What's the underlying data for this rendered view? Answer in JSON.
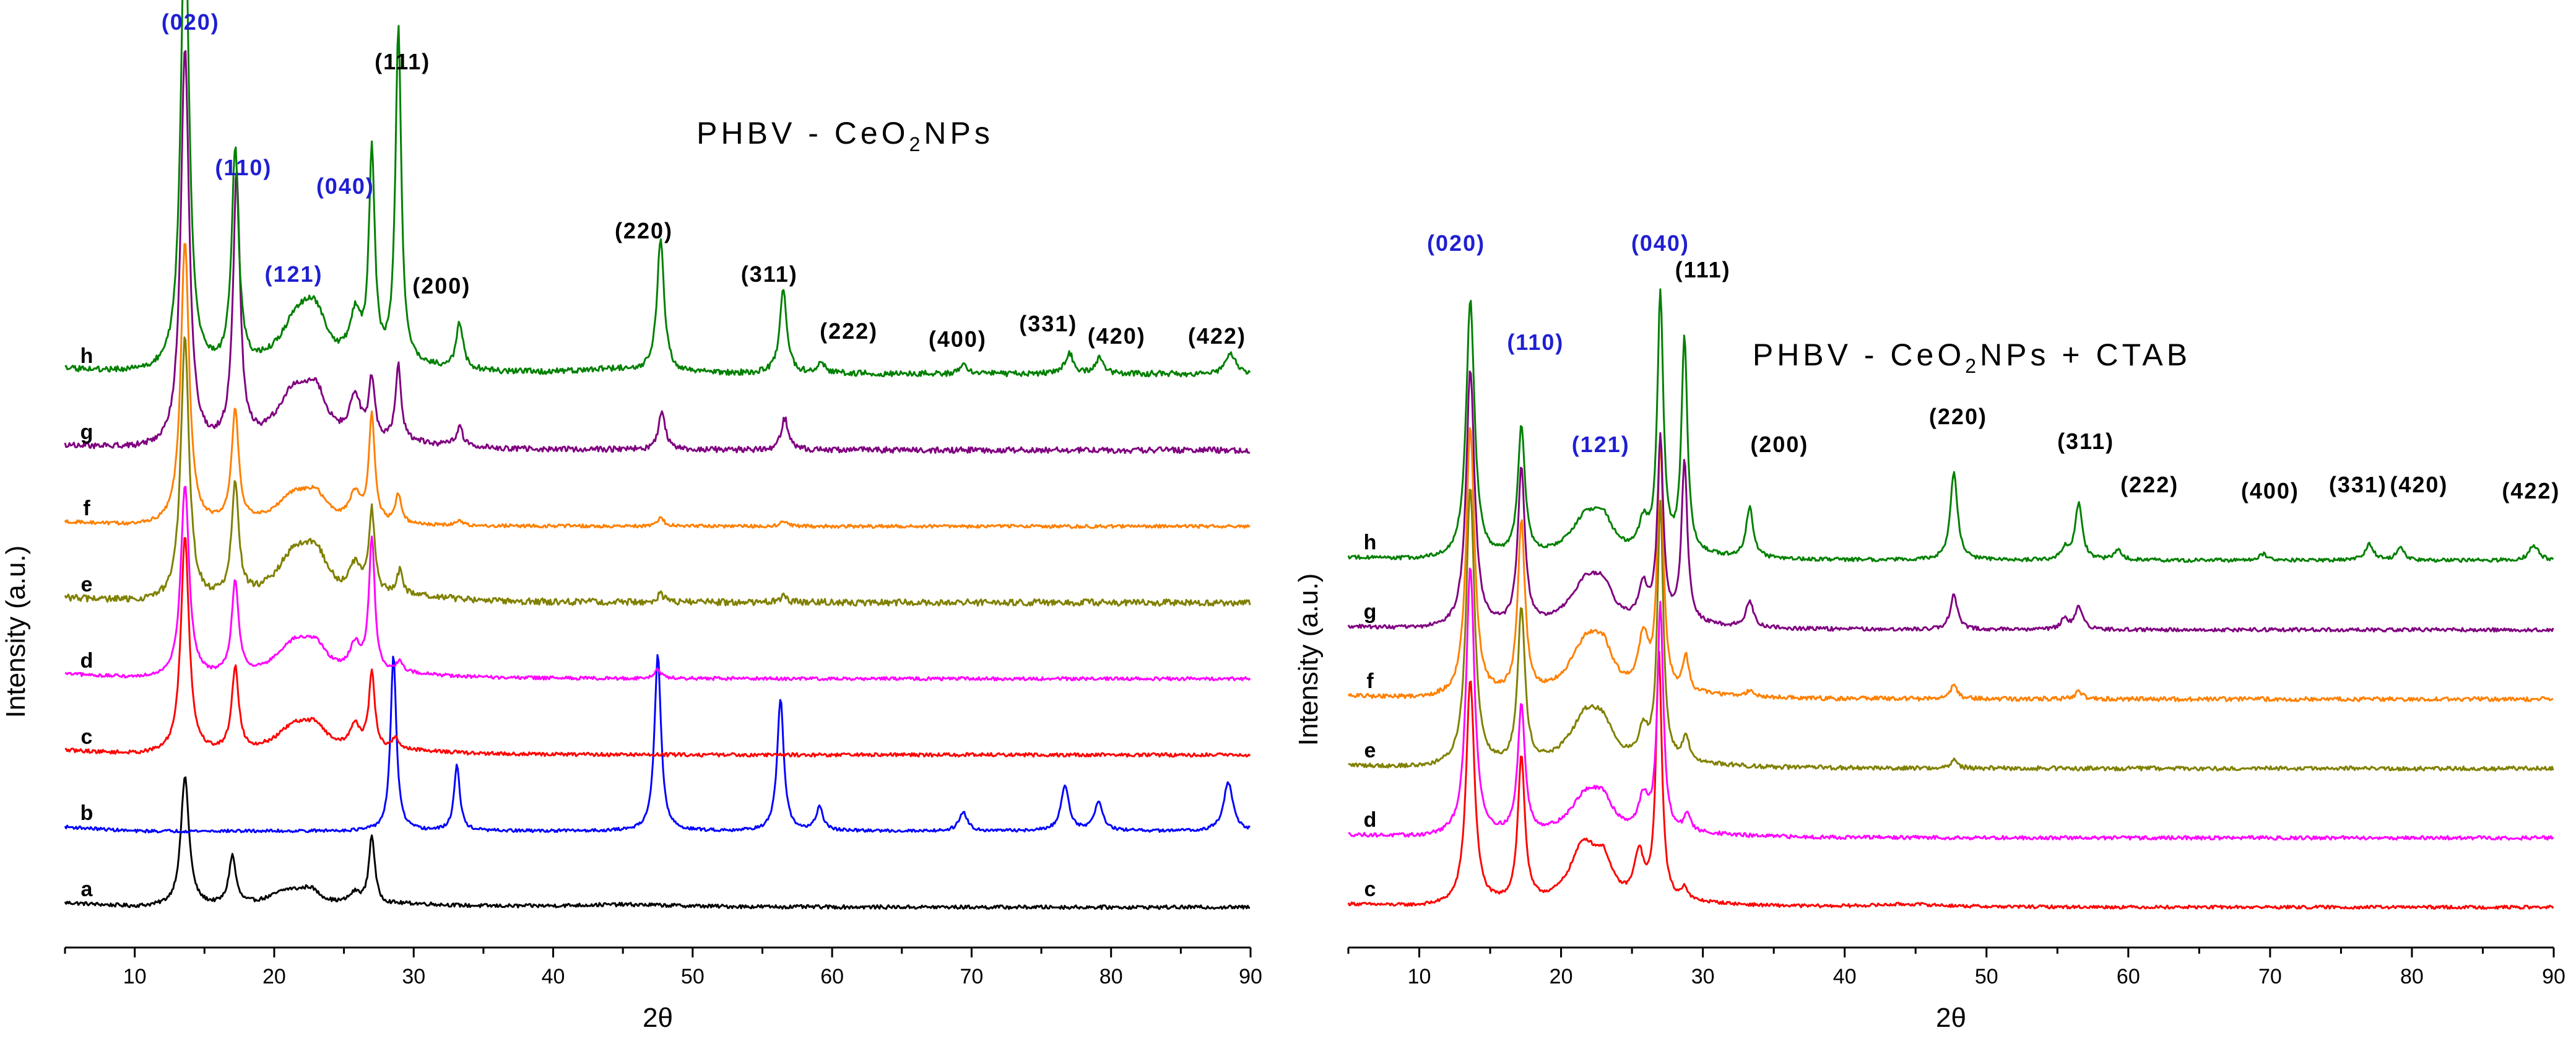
{
  "chart_data": [
    {
      "type": "line",
      "title": "PHBV - CeO2NPs",
      "title_parts": {
        "pre": "PHBV - CeO",
        "sub": "2",
        "post": "NPs"
      },
      "xlabel": "2θ",
      "ylabel": "Intensity (a.u.)",
      "xlim": [
        5,
        90
      ],
      "xticks": [
        "10",
        "20",
        "30",
        "40",
        "50",
        "60",
        "70",
        "80",
        "90"
      ],
      "grid": false,
      "series": [
        {
          "name": "a",
          "color": "#000000",
          "baseline": 0.0,
          "noise": 0.022,
          "peaks": [
            [
              13.6,
              1.55,
              0.35
            ],
            [
              17.0,
              0.58,
              0.3
            ],
            [
              21.0,
              0.18,
              1.6
            ],
            [
              22.6,
              0.14,
              0.8
            ],
            [
              25.8,
              0.13,
              0.5
            ],
            [
              27.0,
              0.82,
              0.25
            ],
            [
              30,
              0.03,
              3
            ],
            [
              45,
              0.03,
              5
            ]
          ]
        },
        {
          "name": "b",
          "color": "#0000ff",
          "baseline": 0.0,
          "noise": 0.018,
          "peaks": [
            [
              28.55,
              2.1,
              0.25
            ],
            [
              33.1,
              0.78,
              0.25
            ],
            [
              47.5,
              2.1,
              0.28
            ],
            [
              56.3,
              1.58,
              0.28
            ],
            [
              59.1,
              0.28,
              0.3
            ],
            [
              69.4,
              0.23,
              0.35
            ],
            [
              76.7,
              0.54,
              0.35
            ],
            [
              79.1,
              0.35,
              0.35
            ],
            [
              88.4,
              0.58,
              0.4
            ]
          ]
        },
        {
          "name": "c",
          "color": "#ff0000",
          "baseline": 0.0,
          "noise": 0.022,
          "peaks": [
            [
              13.6,
              2.6,
              0.35
            ],
            [
              17.2,
              1.0,
              0.3
            ],
            [
              21.5,
              0.32,
              1.6
            ],
            [
              23.0,
              0.22,
              0.9
            ],
            [
              25.8,
              0.28,
              0.5
            ],
            [
              27.0,
              0.92,
              0.25
            ],
            [
              28.7,
              0.15,
              0.25
            ],
            [
              30,
              0.04,
              3
            ]
          ]
        },
        {
          "name": "d",
          "color": "#ff00ff",
          "baseline": 0.0,
          "noise": 0.02,
          "peaks": [
            [
              13.6,
              2.3,
              0.35
            ],
            [
              17.2,
              1.1,
              0.3
            ],
            [
              21.5,
              0.4,
              1.6
            ],
            [
              23.0,
              0.25,
              0.9
            ],
            [
              25.8,
              0.32,
              0.5
            ],
            [
              27.0,
              1.6,
              0.25
            ],
            [
              29.0,
              0.15,
              0.25
            ],
            [
              30,
              0.04,
              3
            ],
            [
              47.5,
              0.1,
              0.3
            ]
          ]
        },
        {
          "name": "e",
          "color": "#808000",
          "baseline": 0.0,
          "noise": 0.04,
          "peaks": [
            [
              13.6,
              3.15,
              0.35
            ],
            [
              17.2,
              1.35,
              0.3
            ],
            [
              21.5,
              0.55,
              1.6
            ],
            [
              23.0,
              0.4,
              0.9
            ],
            [
              25.8,
              0.35,
              0.5
            ],
            [
              27.0,
              1.0,
              0.25
            ],
            [
              29.0,
              0.28,
              0.25
            ],
            [
              30,
              0.06,
              3
            ],
            [
              47.7,
              0.1,
              0.3
            ],
            [
              56.5,
              0.08,
              0.3
            ]
          ]
        },
        {
          "name": "f",
          "color": "#ff8000",
          "baseline": 0.0,
          "noise": 0.02,
          "peaks": [
            [
              13.6,
              3.4,
              0.35
            ],
            [
              17.2,
              1.35,
              0.3
            ],
            [
              21.5,
              0.35,
              1.6
            ],
            [
              23.0,
              0.25,
              0.9
            ],
            [
              25.8,
              0.33,
              0.5
            ],
            [
              27.0,
              1.28,
              0.25
            ],
            [
              28.9,
              0.35,
              0.25
            ],
            [
              33.3,
              0.05,
              0.3
            ],
            [
              47.7,
              0.1,
              0.3
            ],
            [
              56.5,
              0.06,
              0.3
            ]
          ]
        },
        {
          "name": "g",
          "color": "#800080",
          "baseline": 0.0,
          "noise": 0.035,
          "peaks": [
            [
              13.6,
              4.8,
              0.35
            ],
            [
              17.3,
              3.2,
              0.3
            ],
            [
              21.5,
              0.65,
              1.6
            ],
            [
              23.0,
              0.45,
              0.9
            ],
            [
              25.8,
              0.52,
              0.5
            ],
            [
              27.0,
              0.72,
              0.25
            ],
            [
              28.9,
              0.9,
              0.25
            ],
            [
              33.3,
              0.22,
              0.3
            ],
            [
              47.8,
              0.45,
              0.3
            ],
            [
              56.6,
              0.38,
              0.3
            ],
            [
              30,
              0.06,
              3
            ]
          ]
        },
        {
          "name": "h",
          "color": "#008000",
          "baseline": 0.0,
          "noise": 0.035,
          "peaks": [
            [
              13.6,
              5.6,
              0.35
            ],
            [
              17.2,
              2.6,
              0.3
            ],
            [
              21.8,
              0.65,
              1.6
            ],
            [
              23.0,
              0.4,
              0.9
            ],
            [
              25.8,
              0.55,
              0.5
            ],
            [
              27.0,
              2.5,
              0.25
            ],
            [
              28.9,
              4.0,
              0.25
            ],
            [
              33.3,
              0.55,
              0.3
            ],
            [
              47.7,
              1.6,
              0.3
            ],
            [
              56.5,
              1.0,
              0.3
            ],
            [
              59.2,
              0.15,
              0.3
            ],
            [
              69.5,
              0.1,
              0.35
            ],
            [
              77.0,
              0.25,
              0.35
            ],
            [
              79.2,
              0.2,
              0.35
            ],
            [
              88.6,
              0.25,
              0.4
            ],
            [
              30,
              0.06,
              3
            ],
            [
              44.5,
              0.05,
              3
            ]
          ]
        }
      ],
      "annotations": [
        {
          "text": "(020)",
          "x": 14.0,
          "color": "#1f1fd2"
        },
        {
          "text": "(110)",
          "x": 17.8,
          "color": "#1f1fd2"
        },
        {
          "text": "(040)",
          "x": 25.1,
          "color": "#1f1fd2"
        },
        {
          "text": "(121)",
          "x": 21.4,
          "color": "#1f1fd2"
        },
        {
          "text": "(111)",
          "x": 29.2,
          "color": "#000000"
        },
        {
          "text": "(200)",
          "x": 32.0,
          "color": "#000000"
        },
        {
          "text": "(220)",
          "x": 46.5,
          "color": "#000000"
        },
        {
          "text": "(311)",
          "x": 55.5,
          "color": "#000000"
        },
        {
          "text": "(222)",
          "x": 61.2,
          "color": "#000000"
        },
        {
          "text": "(400)",
          "x": 69.0,
          "color": "#000000"
        },
        {
          "text": "(331)",
          "x": 75.5,
          "color": "#000000"
        },
        {
          "text": "(420)",
          "x": 80.4,
          "color": "#000000"
        },
        {
          "text": "(422)",
          "x": 87.6,
          "color": "#000000"
        }
      ]
    },
    {
      "type": "line",
      "title": "PHBV - CeO2NPs + CTAB",
      "title_parts": {
        "pre": "PHBV - CeO",
        "sub": "2",
        "post": "NPs + CTAB"
      },
      "xlabel": "2θ",
      "ylabel": "Intensity (a.u.)",
      "xlim": [
        5,
        90
      ],
      "xticks": [
        "10",
        "20",
        "30",
        "40",
        "50",
        "60",
        "70",
        "80",
        "90"
      ],
      "grid": false,
      "series": [
        {
          "name": "c",
          "color": "#ff0000",
          "baseline": 0.0,
          "noise": 0.03,
          "peaks": [
            [
              13.6,
              4.2,
              0.35
            ],
            [
              17.2,
              2.7,
              0.3
            ],
            [
              21.6,
              1.1,
              1.2
            ],
            [
              23.0,
              0.6,
              0.7
            ],
            [
              25.5,
              0.85,
              0.4
            ],
            [
              26.9,
              4.6,
              0.25
            ],
            [
              28.7,
              0.25,
              0.25
            ],
            [
              30,
              0.05,
              3
            ],
            [
              44.5,
              0.05,
              3
            ]
          ]
        },
        {
          "name": "d",
          "color": "#ff00ff",
          "baseline": 0.0,
          "noise": 0.035,
          "peaks": [
            [
              13.6,
              5.0,
              0.35
            ],
            [
              17.2,
              2.4,
              0.3
            ],
            [
              21.8,
              0.75,
              1.4
            ],
            [
              23.0,
              0.4,
              0.8
            ],
            [
              25.8,
              0.6,
              0.4
            ],
            [
              27.0,
              4.2,
              0.25
            ],
            [
              28.9,
              0.35,
              0.25
            ],
            [
              30,
              0.05,
              3
            ]
          ]
        },
        {
          "name": "e",
          "color": "#808000",
          "baseline": 0.0,
          "noise": 0.04,
          "peaks": [
            [
              13.6,
              5.2,
              0.35
            ],
            [
              17.2,
              2.9,
              0.3
            ],
            [
              21.8,
              0.95,
              1.4
            ],
            [
              23.0,
              0.45,
              0.8
            ],
            [
              25.8,
              0.55,
              0.4
            ],
            [
              27.0,
              4.8,
              0.25
            ],
            [
              28.8,
              0.5,
              0.25
            ],
            [
              30,
              0.05,
              3
            ],
            [
              47.7,
              0.15,
              0.3
            ]
          ]
        },
        {
          "name": "f",
          "color": "#ff8000",
          "baseline": 0.0,
          "noise": 0.04,
          "peaks": [
            [
              13.6,
              5.0,
              0.35
            ],
            [
              17.2,
              3.2,
              0.3
            ],
            [
              21.8,
              1.0,
              1.4
            ],
            [
              23.0,
              0.55,
              0.8
            ],
            [
              25.8,
              1.0,
              0.4
            ],
            [
              27.0,
              4.6,
              0.25
            ],
            [
              28.8,
              0.65,
              0.25
            ],
            [
              33.3,
              0.12,
              0.3
            ],
            [
              47.7,
              0.25,
              0.3
            ],
            [
              56.5,
              0.15,
              0.3
            ],
            [
              30,
              0.05,
              3
            ]
          ]
        },
        {
          "name": "g",
          "color": "#800080",
          "baseline": 0.0,
          "noise": 0.035,
          "peaks": [
            [
              13.6,
              4.8,
              0.35
            ],
            [
              17.2,
              2.9,
              0.3
            ],
            [
              21.8,
              0.85,
              1.4
            ],
            [
              23.0,
              0.45,
              0.8
            ],
            [
              25.8,
              0.65,
              0.4
            ],
            [
              27.0,
              3.4,
              0.25
            ],
            [
              28.7,
              3.0,
              0.25
            ],
            [
              33.3,
              0.5,
              0.3
            ],
            [
              47.7,
              0.65,
              0.3
            ],
            [
              55.5,
              0.2,
              0.3
            ],
            [
              56.5,
              0.45,
              0.3
            ],
            [
              30,
              0.05,
              3
            ]
          ]
        },
        {
          "name": "h",
          "color": "#008000",
          "baseline": 0.0,
          "noise": 0.035,
          "peaks": [
            [
              13.6,
              4.8,
              0.35
            ],
            [
              17.2,
              2.4,
              0.3
            ],
            [
              21.8,
              0.75,
              1.4
            ],
            [
              23.0,
              0.45,
              0.8
            ],
            [
              25.8,
              0.55,
              0.4
            ],
            [
              27.0,
              4.8,
              0.25
            ],
            [
              28.7,
              4.0,
              0.25
            ],
            [
              33.3,
              0.95,
              0.3
            ],
            [
              47.7,
              1.65,
              0.3
            ],
            [
              55.5,
              0.2,
              0.3
            ],
            [
              56.5,
              1.05,
              0.3
            ],
            [
              59.3,
              0.2,
              0.3
            ],
            [
              69.5,
              0.12,
              0.35
            ],
            [
              77.0,
              0.3,
              0.35
            ],
            [
              79.2,
              0.22,
              0.35
            ],
            [
              88.6,
              0.28,
              0.4
            ],
            [
              30,
              0.05,
              3
            ]
          ]
        }
      ],
      "annotations": [
        {
          "text": "(020)",
          "x": 12.6,
          "color": "#1f1fd2"
        },
        {
          "text": "(110)",
          "x": 18.2,
          "color": "#1f1fd2"
        },
        {
          "text": "(121)",
          "x": 22.8,
          "color": "#1f1fd2"
        },
        {
          "text": "(040)",
          "x": 27.0,
          "color": "#1f1fd2"
        },
        {
          "text": "(111)",
          "x": 30.0,
          "color": "#000000"
        },
        {
          "text": "(200)",
          "x": 35.4,
          "color": "#000000"
        },
        {
          "text": "(220)",
          "x": 48.0,
          "color": "#000000"
        },
        {
          "text": "(311)",
          "x": 57.0,
          "color": "#000000"
        },
        {
          "text": "(222)",
          "x": 61.5,
          "color": "#000000"
        },
        {
          "text": "(400)",
          "x": 70.0,
          "color": "#000000"
        },
        {
          "text": "(331)",
          "x": 76.2,
          "color": "#000000"
        },
        {
          "text": "(420)",
          "x": 80.5,
          "color": "#000000"
        },
        {
          "text": "(422)",
          "x": 88.4,
          "color": "#000000"
        }
      ]
    }
  ]
}
